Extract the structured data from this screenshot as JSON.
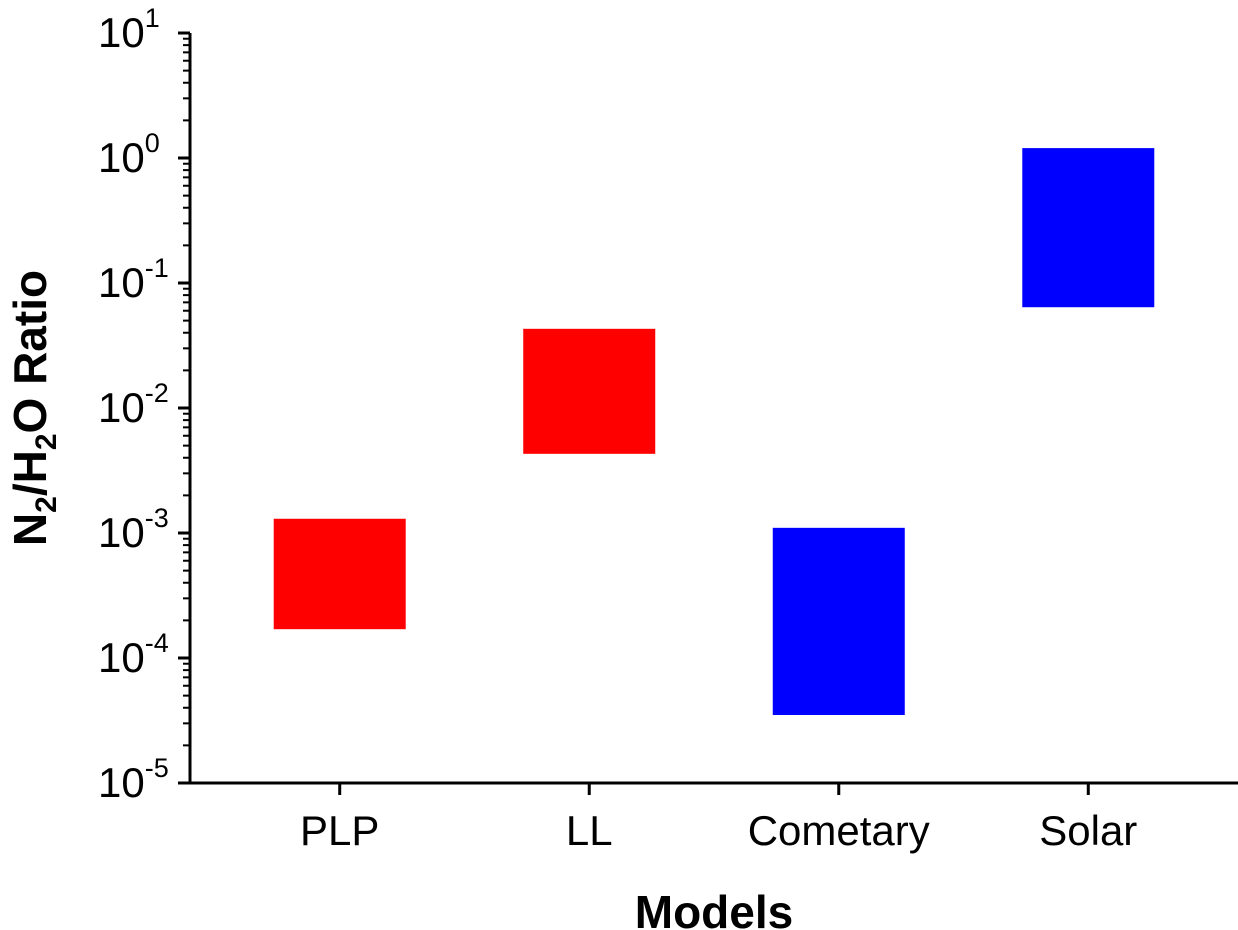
{
  "chart_data": {
    "type": "bar",
    "subtype": "floating-range",
    "scale": "log",
    "title": "",
    "xlabel": "Models",
    "ylabel_parts": [
      "N",
      "2",
      "/H",
      "2",
      "O Ratio"
    ],
    "ylim": [
      1e-05,
      10
    ],
    "yticks": [
      {
        "base": "10",
        "exp": "1"
      },
      {
        "base": "10",
        "exp": "0"
      },
      {
        "base": "10",
        "exp": "-1"
      },
      {
        "base": "10",
        "exp": "-2"
      },
      {
        "base": "10",
        "exp": "-3"
      },
      {
        "base": "10",
        "exp": "-4"
      },
      {
        "base": "10",
        "exp": "-5"
      }
    ],
    "categories": [
      "PLP",
      "LL",
      "Cometary",
      "Solar"
    ],
    "ranges": [
      {
        "low": 0.00017,
        "high": 0.0013,
        "color": "#ff0000"
      },
      {
        "low": 0.0043,
        "high": 0.043,
        "color": "#ff0000"
      },
      {
        "low": 3.5e-05,
        "high": 0.0011,
        "color": "#0000ff"
      },
      {
        "low": 0.064,
        "high": 1.2,
        "color": "#0000ff"
      }
    ],
    "grid": false,
    "legend": "none"
  }
}
